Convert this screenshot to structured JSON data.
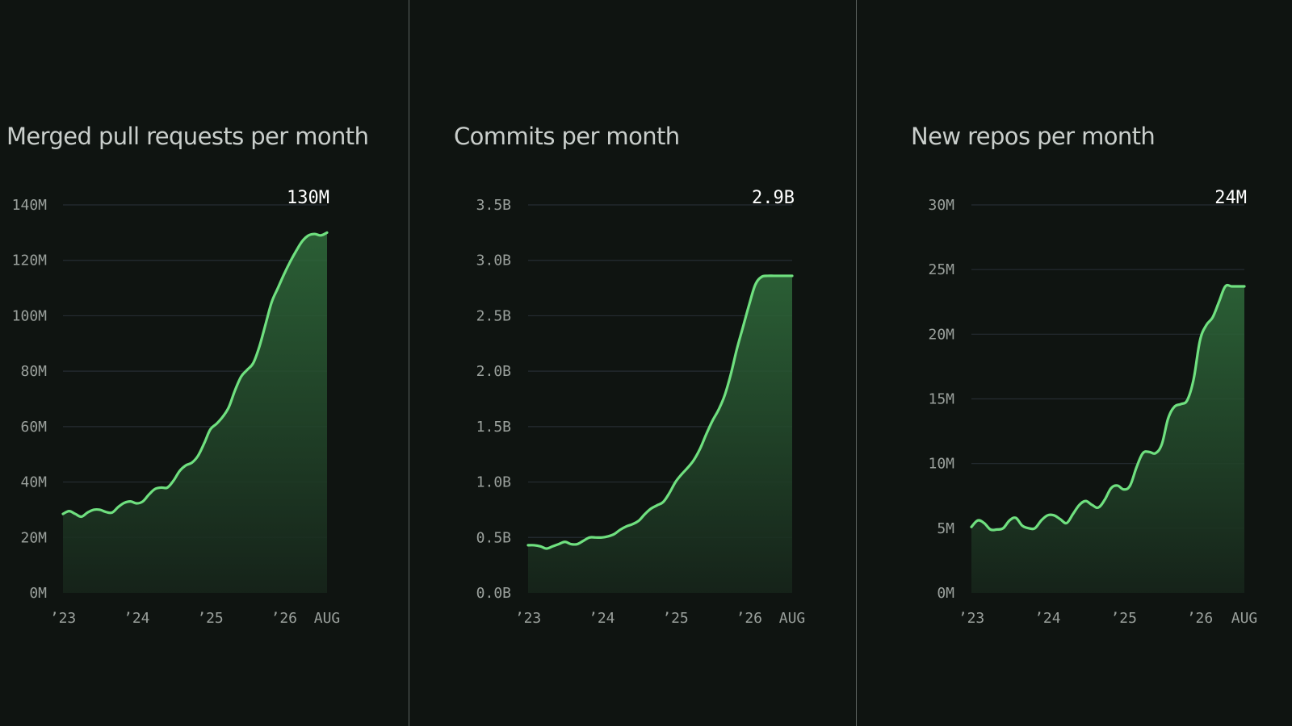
{
  "chart_data": [
    {
      "type": "area",
      "title": "Merged pull requests per month",
      "peak_label": "130M",
      "y_ticks": [
        "0M",
        "20M",
        "40M",
        "60M",
        "80M",
        "100M",
        "120M",
        "140M"
      ],
      "ylim": [
        0,
        140
      ],
      "y_unit": "millions",
      "x_ticks": [
        {
          "label": "’23",
          "x": 0
        },
        {
          "label": "’24",
          "x": 12
        },
        {
          "label": "’25",
          "x": 24
        },
        {
          "label": "’26",
          "x": 36
        },
        {
          "label": "AUG",
          "x": 43
        }
      ],
      "xlim": [
        0,
        43
      ],
      "grid": true,
      "series": [
        {
          "x": [
            0,
            1,
            2,
            3,
            4,
            5,
            6,
            7,
            8,
            9,
            10,
            11,
            12,
            13,
            14,
            15,
            16,
            17,
            18,
            19,
            20,
            21,
            22,
            23,
            24,
            25,
            26,
            27,
            28,
            29,
            30,
            31,
            32,
            33,
            34,
            35,
            36,
            37,
            38,
            39,
            40,
            41,
            42,
            43
          ],
          "values": [
            28.5,
            29.5,
            28.5,
            27.5,
            29,
            30,
            30,
            29.2,
            29,
            31,
            32.5,
            33,
            32.3,
            33,
            35.5,
            37.5,
            38,
            38,
            40.5,
            44,
            46,
            47,
            49.5,
            54,
            59,
            61,
            63.5,
            67,
            73,
            78,
            80.5,
            83,
            89,
            97,
            105,
            110,
            115,
            119.5,
            123.5,
            127,
            129,
            129.5,
            129,
            130
          ]
        }
      ]
    },
    {
      "type": "area",
      "title": "Commits per month",
      "peak_label": "2.9B",
      "y_ticks": [
        "0.0B",
        "0.5B",
        "1.0B",
        "1.5B",
        "2.0B",
        "2.5B",
        "3.0B",
        "3.5B"
      ],
      "ylim": [
        0,
        3.5
      ],
      "y_unit": "billions",
      "x_ticks": [
        {
          "label": "’23",
          "x": 0
        },
        {
          "label": "’24",
          "x": 12
        },
        {
          "label": "’25",
          "x": 24
        },
        {
          "label": "’26",
          "x": 36
        },
        {
          "label": "AUG",
          "x": 43
        }
      ],
      "xlim": [
        0,
        43
      ],
      "grid": true,
      "series": [
        {
          "x": [
            0,
            1,
            2,
            3,
            4,
            5,
            6,
            7,
            8,
            9,
            10,
            11,
            12,
            13,
            14,
            15,
            16,
            17,
            18,
            19,
            20,
            21,
            22,
            23,
            24,
            25,
            26,
            27,
            28,
            29,
            30,
            31,
            32,
            33,
            34,
            35,
            36,
            37,
            38,
            39,
            40,
            41,
            42,
            43
          ],
          "values": [
            0.43,
            0.43,
            0.42,
            0.4,
            0.42,
            0.44,
            0.46,
            0.44,
            0.44,
            0.47,
            0.5,
            0.5,
            0.5,
            0.51,
            0.53,
            0.57,
            0.6,
            0.62,
            0.65,
            0.71,
            0.76,
            0.79,
            0.82,
            0.9,
            1.0,
            1.07,
            1.13,
            1.2,
            1.3,
            1.43,
            1.55,
            1.65,
            1.78,
            1.97,
            2.2,
            2.4,
            2.6,
            2.78,
            2.85,
            2.86,
            2.86,
            2.86,
            2.86,
            2.86
          ]
        }
      ]
    },
    {
      "type": "area",
      "title": "New repos per month",
      "peak_label": "24M",
      "y_ticks": [
        "0M",
        "5M",
        "10M",
        "15M",
        "20M",
        "25M",
        "30M"
      ],
      "ylim": [
        0,
        30
      ],
      "y_unit": "millions",
      "x_ticks": [
        {
          "label": "’23",
          "x": 0
        },
        {
          "label": "’24",
          "x": 12
        },
        {
          "label": "’25",
          "x": 24
        },
        {
          "label": "’26",
          "x": 36
        },
        {
          "label": "AUG",
          "x": 43
        }
      ],
      "xlim": [
        0,
        43
      ],
      "grid": true,
      "series": [
        {
          "x": [
            0,
            1,
            2,
            3,
            4,
            5,
            6,
            7,
            8,
            9,
            10,
            11,
            12,
            13,
            14,
            15,
            16,
            17,
            18,
            19,
            20,
            21,
            22,
            23,
            24,
            25,
            26,
            27,
            28,
            29,
            30,
            31,
            32,
            33,
            34,
            35,
            36,
            37,
            38,
            39,
            40,
            41,
            42,
            43
          ],
          "values": [
            5.1,
            5.6,
            5.4,
            4.9,
            4.9,
            5.0,
            5.6,
            5.8,
            5.2,
            5.0,
            5.0,
            5.6,
            6.0,
            6.0,
            5.7,
            5.4,
            6.1,
            6.8,
            7.1,
            6.8,
            6.6,
            7.2,
            8.1,
            8.3,
            8.0,
            8.3,
            9.7,
            10.8,
            10.9,
            10.8,
            11.5,
            13.5,
            14.4,
            14.6,
            14.9,
            16.5,
            19.5,
            20.7,
            21.3,
            22.5,
            23.7,
            23.7,
            23.7,
            23.7
          ]
        }
      ]
    }
  ]
}
